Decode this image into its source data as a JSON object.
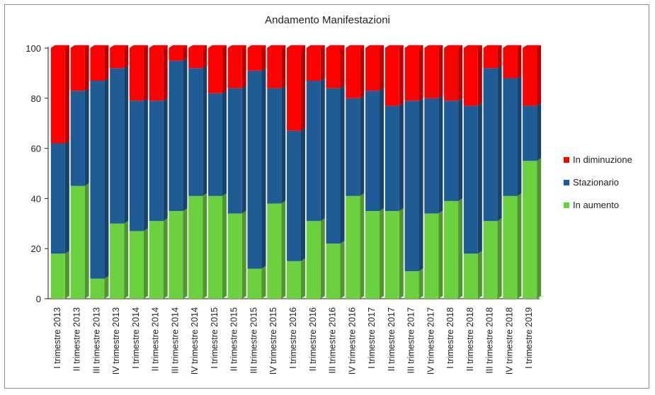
{
  "chart_data": {
    "type": "bar",
    "stacked": true,
    "three_d": true,
    "title": "Andamento Manifestazioni",
    "xlabel": "",
    "ylabel": "",
    "ylim": [
      0,
      100
    ],
    "yticks": [
      0,
      20,
      40,
      60,
      80,
      100
    ],
    "grid": false,
    "legend_position": "right",
    "categories": [
      "I trimestre 2013",
      "II trimestre 2013",
      "III trimestre 2013",
      "IV trimestre 2013",
      "I trimestre 2014",
      "II trimestre 2014",
      "III trimestre 2014",
      "IV trimestre 2014",
      "I trimestre 2015",
      "II trimestre 2015",
      "III trimestre 2015",
      "IV trimestre 2015",
      "I trimestre 2016",
      "II trimestre 2016",
      "III trimestre 2016",
      "IV trimestre 2016",
      "I trimestre 2017",
      "II trimestre 2017",
      "III trimestre 2017",
      "IV trimestre 2017",
      "I trimestre 2018",
      "II trimestre 2018",
      "III trimestre 2018",
      "IV trimestre 2018",
      "I trimestre 2019"
    ],
    "series": [
      {
        "name": "In aumento",
        "color": "#6cd13f",
        "values": [
          18,
          45,
          8,
          30,
          27,
          31,
          35,
          41,
          41,
          34,
          12,
          38,
          15,
          31,
          22,
          41,
          35,
          35,
          11,
          34,
          39,
          18,
          31,
          41,
          55
        ]
      },
      {
        "name": "Stazionario",
        "color": "#1f5c96",
        "values": [
          44,
          38,
          79,
          62,
          52,
          48,
          60,
          51,
          41,
          50,
          79,
          46,
          52,
          56,
          62,
          39,
          48,
          42,
          68,
          46,
          40,
          59,
          61,
          47,
          22
        ]
      },
      {
        "name": "In diminuzione",
        "color": "#ff0000",
        "values": [
          38,
          17,
          13,
          8,
          21,
          21,
          5,
          8,
          18,
          16,
          9,
          16,
          33,
          13,
          16,
          20,
          17,
          23,
          21,
          20,
          21,
          23,
          8,
          12,
          23
        ]
      }
    ]
  }
}
